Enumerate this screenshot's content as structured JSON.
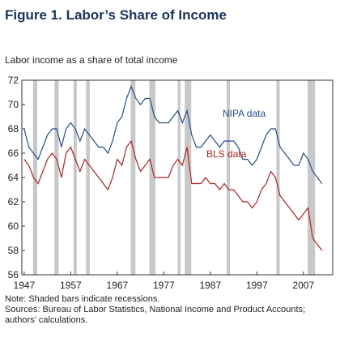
{
  "chart_data": {
    "type": "line",
    "title": "Figure 1. Labor’s Share of Income",
    "subtitle": "Labor income as a share of total income",
    "notes": [
      "Note: Shaded bars indicate recessions.",
      "Sources: Bureau of Labor Statistics, National Income and Product Accounts;",
      "authors’ calculations."
    ],
    "x": [
      1947,
      1948,
      1949,
      1950,
      1951,
      1952,
      1953,
      1954,
      1955,
      1956,
      1957,
      1958,
      1959,
      1960,
      1961,
      1962,
      1963,
      1964,
      1965,
      1966,
      1967,
      1968,
      1969,
      1970,
      1971,
      1972,
      1973,
      1974,
      1975,
      1976,
      1977,
      1978,
      1979,
      1980,
      1981,
      1982,
      1983,
      1984,
      1985,
      1986,
      1987,
      1988,
      1989,
      1990,
      1991,
      1992,
      1993,
      1994,
      1995,
      1996,
      1997,
      1998,
      1999,
      2000,
      2001,
      2002,
      2003,
      2004,
      2005,
      2006,
      2007,
      2008,
      2009,
      2010,
      2011
    ],
    "series": [
      {
        "name": "NIPA data",
        "color": "#1f4e8c",
        "values": [
          68,
          66.5,
          66,
          65.5,
          66.5,
          67.5,
          68,
          68,
          66.5,
          68,
          68.5,
          68,
          67,
          68,
          67.5,
          67,
          66.5,
          66.5,
          66,
          67,
          68.5,
          69,
          70.5,
          71.5,
          70.5,
          70,
          70.5,
          70.5,
          69,
          68.5,
          68.5,
          68.5,
          69,
          69.5,
          68.5,
          69.5,
          67.5,
          66.5,
          66.5,
          67,
          67.5,
          67,
          66.5,
          67,
          67,
          67,
          66.5,
          65.5,
          65.5,
          65,
          65.5,
          66.5,
          67.5,
          68,
          68,
          66.5,
          66,
          65.5,
          65,
          65,
          66,
          65.5,
          64.5,
          64,
          63.5
        ]
      },
      {
        "name": "BLS data",
        "color": "#b22222",
        "values": [
          65.5,
          65,
          64,
          63.5,
          64.5,
          65.5,
          66,
          65.5,
          64,
          66,
          66.5,
          65.5,
          64.5,
          65.5,
          65,
          64.5,
          64,
          63.5,
          63,
          64,
          65.5,
          65,
          66.5,
          67,
          65.5,
          64.5,
          65,
          65.5,
          64,
          64,
          64,
          64,
          65,
          65.5,
          65,
          66.5,
          63.5,
          63.5,
          63.5,
          64,
          63.5,
          63.5,
          63,
          63.5,
          63,
          63,
          62.5,
          62,
          62,
          61.5,
          62,
          63,
          63.5,
          64.5,
          64,
          62.5,
          62,
          61.5,
          61,
          60.5,
          61,
          61.5,
          59,
          58.5,
          58
        ]
      }
    ],
    "recessions": [
      [
        1948.9,
        1949.8
      ],
      [
        1953.5,
        1954.4
      ],
      [
        1957.6,
        1958.3
      ],
      [
        1960.3,
        1961.1
      ],
      [
        1969.9,
        1970.9
      ],
      [
        1973.9,
        1975.2
      ],
      [
        1980.0,
        1980.6
      ],
      [
        1981.5,
        1982.9
      ],
      [
        1990.5,
        1991.2
      ],
      [
        2001.2,
        2001.9
      ],
      [
        2007.9,
        2009.5
      ]
    ],
    "recession_color": "#c8c8c8",
    "xlim": [
      1946.5,
      2013.3
    ],
    "xticks": [
      1947,
      1957,
      1967,
      1977,
      1987,
      1997,
      2007
    ],
    "ylim": [
      56,
      72
    ],
    "yticks": [
      56,
      58,
      60,
      62,
      64,
      66,
      68,
      70,
      72
    ]
  }
}
